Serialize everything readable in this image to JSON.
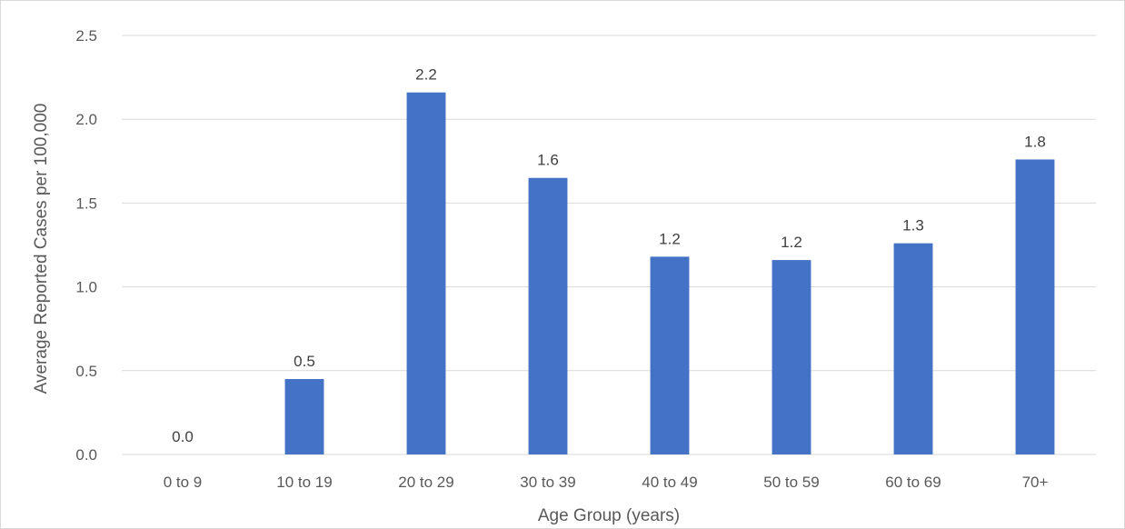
{
  "chart_data": {
    "type": "bar",
    "title": "",
    "xlabel": "Age Group (years)",
    "ylabel": "Average Reported Cases per 100,000",
    "categories": [
      "0 to 9",
      "10 to 19",
      "20 to 29",
      "30 to 39",
      "40 to 49",
      "50 to 59",
      "60 to 69",
      "70+"
    ],
    "values": [
      0.0,
      0.45,
      2.16,
      1.65,
      1.18,
      1.16,
      1.26,
      1.76
    ],
    "data_labels": [
      "0.0",
      "0.5",
      "2.2",
      "1.6",
      "1.2",
      "1.2",
      "1.3",
      "1.8"
    ],
    "ylim": [
      0,
      2.5
    ],
    "yticks": [
      "0.0",
      "0.5",
      "1.0",
      "1.5",
      "2.0",
      "2.5"
    ],
    "grid": true,
    "legend": "none",
    "bar_color": "#4472c4",
    "grid_color": "#d9d9d9"
  }
}
